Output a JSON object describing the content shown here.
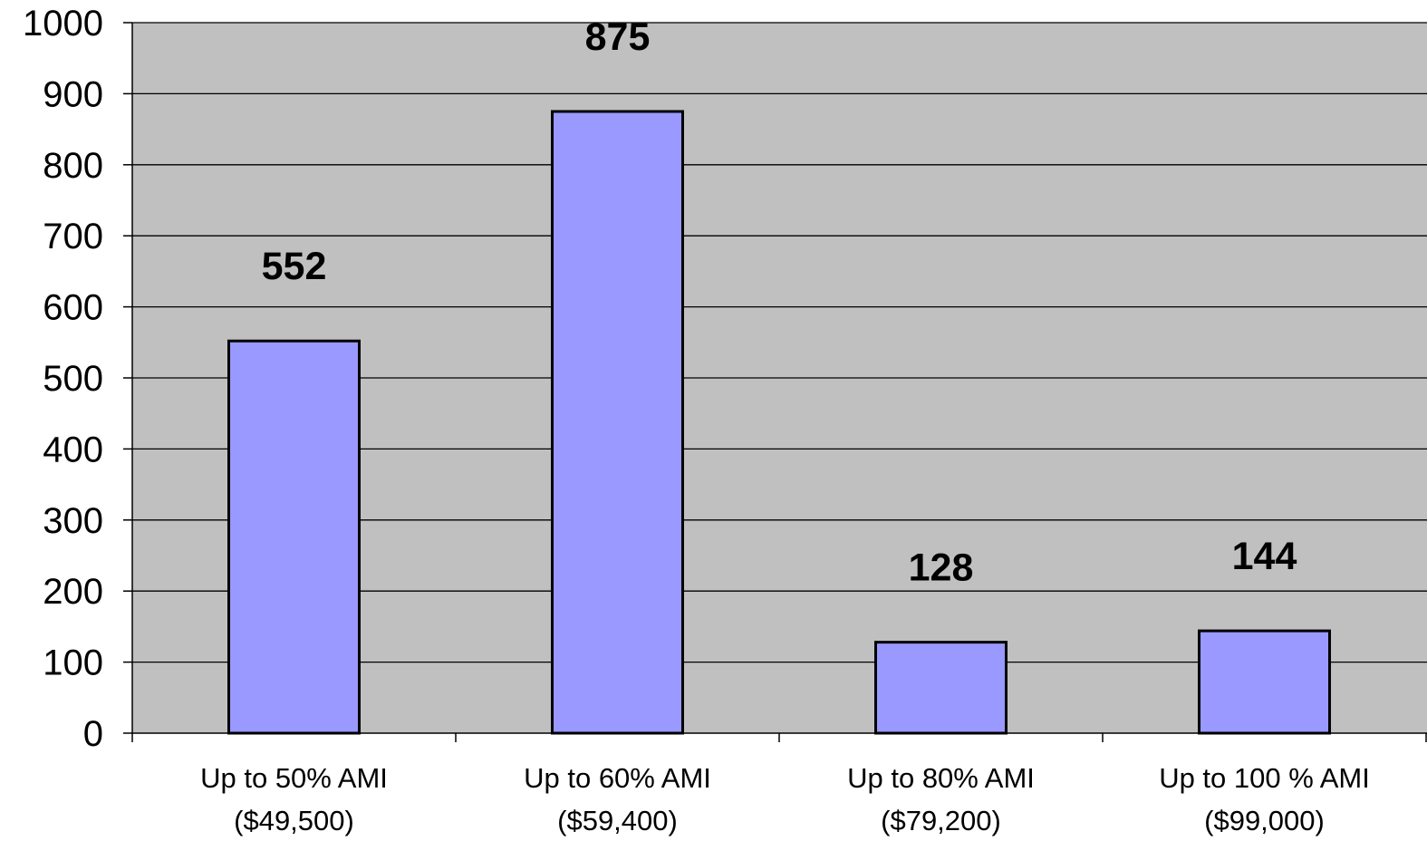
{
  "chart_data": {
    "type": "bar",
    "categories": [
      [
        "Up to 50% AMI",
        "($49,500)"
      ],
      [
        "Up to 60% AMI",
        "($59,400)"
      ],
      [
        "Up to 80% AMI",
        "($79,200)"
      ],
      [
        "Up to 100 % AMI",
        "($99,000)"
      ]
    ],
    "values": [
      552,
      875,
      128,
      144
    ],
    "data_labels": [
      "552",
      "875",
      "128",
      "144"
    ],
    "yticks": [
      "0",
      "100",
      "200",
      "300",
      "400",
      "500",
      "600",
      "700",
      "800",
      "900",
      "1000"
    ],
    "ylim": [
      0,
      1000
    ],
    "grid": true,
    "legend": false,
    "title": "",
    "xlabel": "",
    "ylabel": ""
  },
  "colors": {
    "plot_background": "#c0c0c0",
    "bar_fill": "#9999ff",
    "bar_stroke": "#000000",
    "gridline": "#000000"
  }
}
